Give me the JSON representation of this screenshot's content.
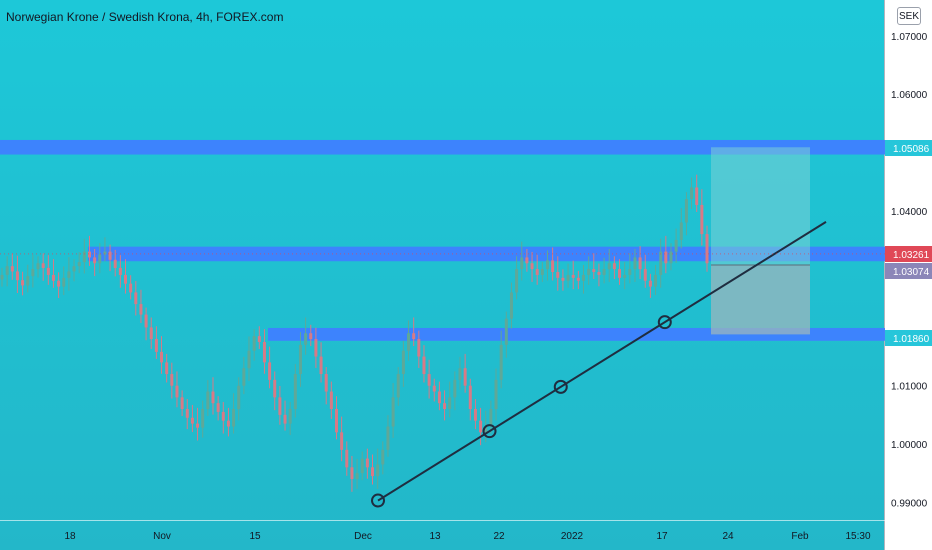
{
  "title": "Norwegian Krone / Swedish Krona, 4h, FOREX.com",
  "unit_label": "SEK",
  "colors": {
    "background_top": "#1dc8d8",
    "background_bottom": "#23b7c9",
    "zone": "#3f7fff",
    "up_candle": "#5fa898",
    "down_candle": "#d87a86",
    "trendline": "#1f2d40",
    "price_tag_zone": "#26c6da",
    "price_tag_current": "#e04857",
    "price_tag_entry": "#8b86b8",
    "target_box": "#7bd0d5",
    "stop_box": "#9bb5bd"
  },
  "chart_data": {
    "type": "candlestick",
    "symbol": "NOKSEK",
    "timeframe": "4h",
    "ylim": [
      0.9875,
      1.0735
    ],
    "y_ticks": [
      "1.07000",
      "1.06000",
      "1.04000",
      "1.01000",
      "1.00000",
      "0.99000"
    ],
    "x_ticks": [
      "18",
      "Nov",
      "15",
      "Dec",
      "13",
      "22",
      "2022",
      "17",
      "24",
      "Feb",
      "15:30"
    ],
    "price_tags": [
      {
        "label": "1.05086",
        "kind": "zone"
      },
      {
        "label": "1.03261",
        "kind": "current"
      },
      {
        "label": "1.03074",
        "kind": "entry"
      },
      {
        "label": "1.01860",
        "kind": "zone"
      }
    ],
    "zones": [
      {
        "name": "resistance",
        "price": 1.0509,
        "thickness": 0.0025
      },
      {
        "name": "mid",
        "price": 1.0326,
        "thickness": 0.0025
      },
      {
        "name": "support",
        "price": 1.0188,
        "thickness": 0.0022
      }
    ],
    "trendline": {
      "start": [
        0.9903
      ],
      "end": [
        1.0381
      ]
    },
    "touch_points": [
      0.9903,
      1.0022,
      1.0098,
      1.0209
    ],
    "position": {
      "entry": 1.0307,
      "target": 1.0509,
      "stop": 1.0188
    },
    "close_series": [
      1.029,
      1.0305,
      1.0296,
      1.0281,
      1.0272,
      1.0288,
      1.03,
      1.031,
      1.0302,
      1.029,
      1.028,
      1.027,
      1.0285,
      1.0296,
      1.0305,
      1.0312,
      1.033,
      1.032,
      1.031,
      1.0325,
      1.033,
      1.0316,
      1.0302,
      1.029,
      1.0275,
      1.026,
      1.024,
      1.0222,
      1.02,
      1.018,
      1.0158,
      1.014,
      1.012,
      1.01,
      1.008,
      1.006,
      1.0045,
      1.0035,
      1.0028,
      1.006,
      1.009,
      1.007,
      1.0055,
      1.004,
      1.003,
      1.006,
      1.01,
      1.013,
      1.016,
      1.0185,
      1.0175,
      1.014,
      1.011,
      1.008,
      1.005,
      1.0035,
      1.006,
      1.012,
      1.017,
      1.019,
      1.018,
      1.015,
      1.012,
      1.009,
      1.006,
      1.002,
      0.999,
      0.996,
      0.994,
      0.995,
      0.9975,
      0.996,
      0.9945,
      0.9965,
      0.999,
      1.003,
      1.008,
      1.012,
      1.016,
      1.019,
      1.018,
      1.015,
      1.012,
      1.01,
      1.009,
      1.007,
      1.006,
      1.008,
      1.011,
      1.013,
      1.01,
      1.006,
      1.004,
      1.002,
      1.003,
      1.006,
      1.011,
      1.017,
      1.0215,
      1.026,
      1.03,
      1.032,
      1.031,
      1.03,
      1.029,
      1.03,
      1.0315,
      1.0295,
      1.0285,
      1.028,
      1.029,
      1.0285,
      1.028,
      1.029,
      1.03,
      1.0295,
      1.029,
      1.03,
      1.031,
      1.03,
      1.0285,
      1.029,
      1.03,
      1.032,
      1.03,
      1.028,
      1.027,
      1.029,
      1.033,
      1.031,
      1.033,
      1.035,
      1.038,
      1.042,
      1.044,
      1.041,
      1.036,
      1.031
    ]
  }
}
